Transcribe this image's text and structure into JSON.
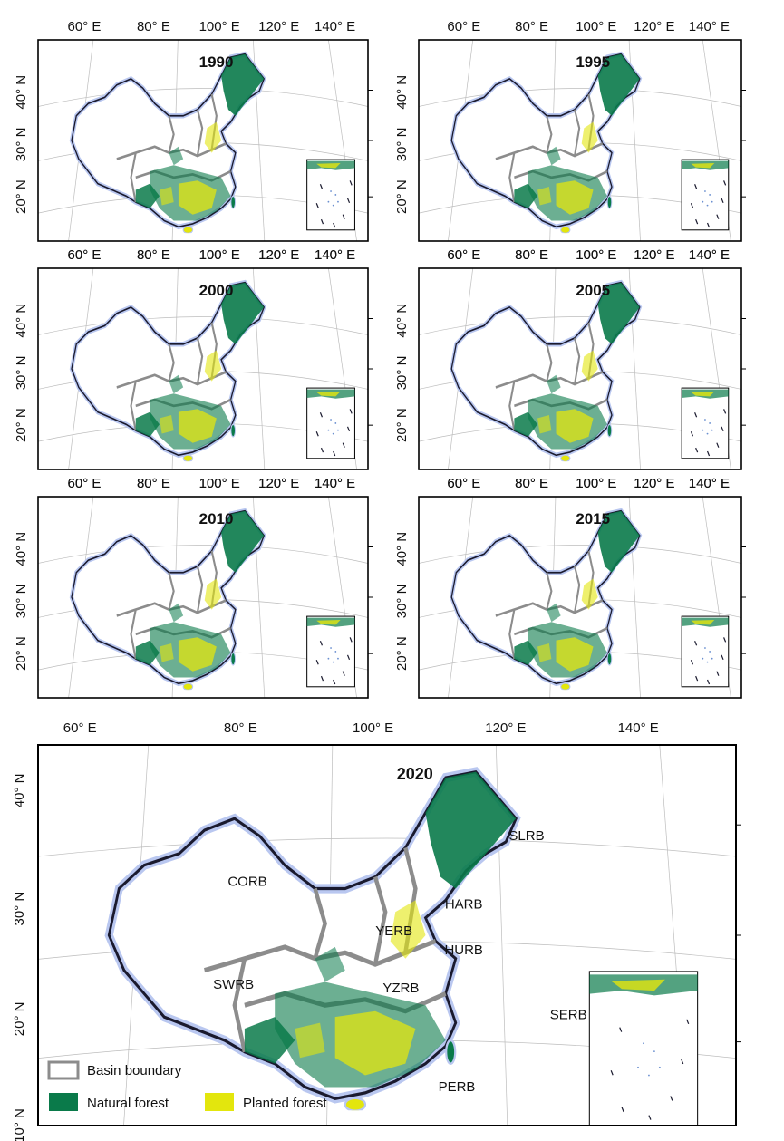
{
  "figure": {
    "lon_labels_small": [
      "60° E",
      "80° E",
      "100° E",
      "120° E",
      "140° E"
    ],
    "lat_labels_small": [
      "40° N",
      "30° N",
      "20° N"
    ],
    "lon_labels_large": [
      "60° E",
      "80° E",
      "100° E",
      "120° E",
      "140° E"
    ],
    "lat_labels_large": [
      "40° N",
      "30° N",
      "20° N",
      "10° N"
    ],
    "colors": {
      "natural_forest": "#0a7a4a",
      "planted_forest": "#e3e60d",
      "basin_boundary": "#8c8c8c",
      "coast_glow": "#b9c7f0",
      "frame": "#000000"
    }
  },
  "panels": [
    {
      "id": "p1990",
      "year": "1990"
    },
    {
      "id": "p1995",
      "year": "1995"
    },
    {
      "id": "p2000",
      "year": "2000"
    },
    {
      "id": "p2005",
      "year": "2005"
    },
    {
      "id": "p2010",
      "year": "2010"
    },
    {
      "id": "p2015",
      "year": "2015"
    }
  ],
  "main_panel": {
    "year": "2020",
    "basins": [
      "SLRB",
      "CORB",
      "HARB",
      "YERB",
      "HURB",
      "SWRB",
      "YZRB",
      "SERB",
      "PERB"
    ]
  },
  "legend": {
    "basin_boundary": "Basin boundary",
    "natural_forest": "Natural forest",
    "planted_forest": "Planted forest"
  }
}
